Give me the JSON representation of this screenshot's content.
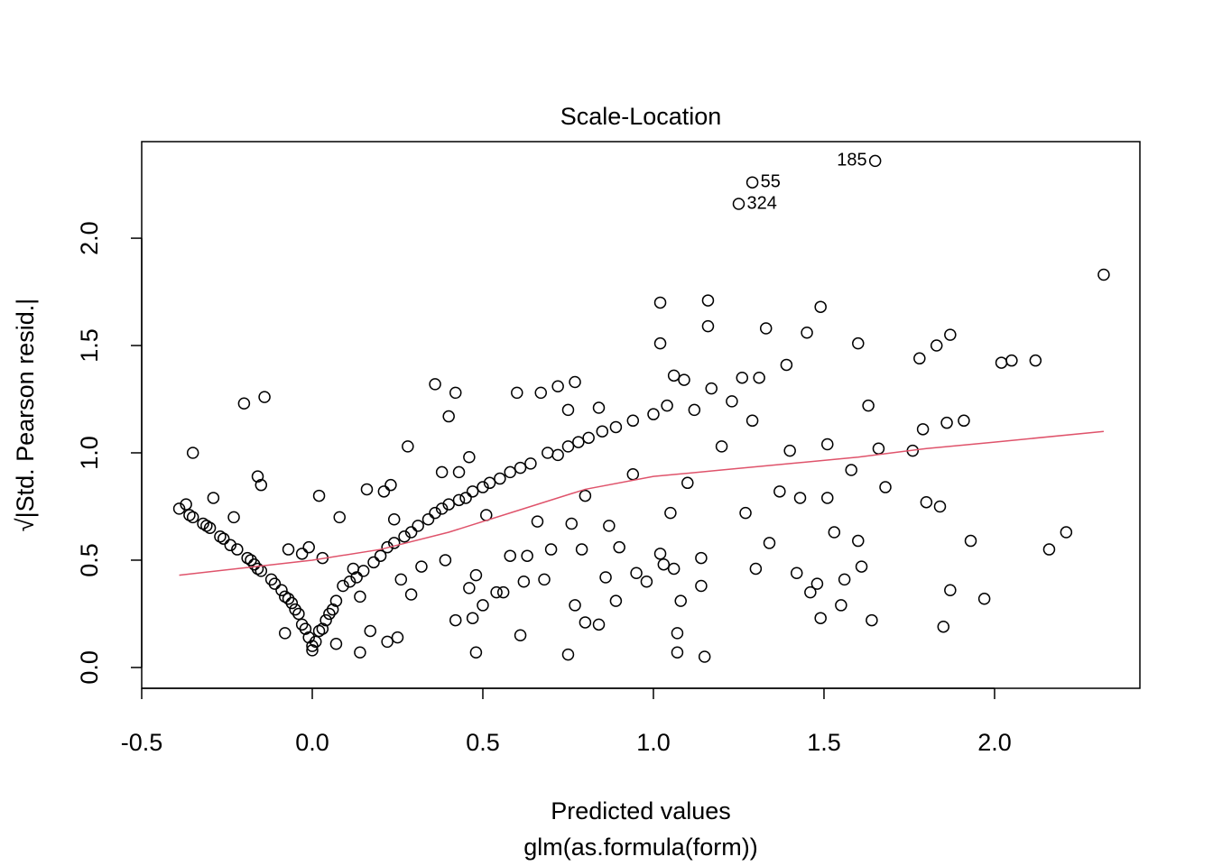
{
  "chart_data": {
    "type": "scatter",
    "title": "Scale-Location",
    "xlabel": "Predicted values",
    "subtitle": "glm(as.formula(form))",
    "ylabel": "√|Std. Pearson resid.|",
    "xlim": [
      -0.5,
      2.426
    ],
    "ylim": [
      -0.097,
      2.45
    ],
    "xticks": [
      -0.5,
      {
        "value": 0,
        "label": "0.0"
      },
      0.5,
      {
        "value": 1,
        "label": "1.0"
      },
      1.5,
      {
        "value": 2,
        "label": "2.0"
      }
    ],
    "yticks": [
      {
        "value": 0,
        "label": "0.0"
      },
      0.5,
      {
        "value": 1,
        "label": "1.0"
      },
      1.5,
      {
        "value": 2,
        "label": "2.0"
      }
    ],
    "points": {
      "color": "#000000",
      "x": [
        -0.39,
        -0.37,
        -0.36,
        -0.35,
        -0.32,
        -0.31,
        -0.3,
        -0.27,
        -0.26,
        -0.24,
        -0.22,
        -0.19,
        -0.18,
        -0.17,
        -0.16,
        -0.15,
        -0.12,
        -0.11,
        -0.09,
        -0.08,
        -0.07,
        -0.06,
        -0.05,
        -0.04,
        -0.03,
        -0.02,
        -0.01,
        0,
        0,
        0.01,
        0.02,
        0.03,
        0.04,
        0.05,
        0.06,
        0.07,
        0.09,
        0.11,
        0.13,
        0.15,
        0.18,
        0.2,
        0.22,
        0.24,
        0.27,
        0.29,
        0.31,
        0.34,
        0.36,
        0.38,
        0.4,
        0.43,
        0.45,
        0.47,
        0.5,
        0.52,
        0.55,
        0.58,
        0.61,
        0.64,
        0.69,
        0.72,
        0.75,
        0.78,
        0.81,
        0.85,
        0.89,
        0.94,
        -0.35,
        -0.2,
        -0.14,
        -0.16,
        -0.15,
        -0.23,
        -0.29,
        -0.08,
        -0.07,
        -0.03,
        -0.01,
        0.02,
        0.03,
        0.07,
        0.08,
        0.12,
        0.14,
        0.14,
        0.16,
        0.17,
        0.21,
        0.22,
        0.25,
        0.23,
        0.24,
        0.26,
        0.28,
        0.29,
        0.32,
        0.36,
        0.38,
        0.39,
        0.4,
        0.42,
        0.42,
        0.43,
        0.46,
        0.46,
        0.47,
        0.48,
        0.48,
        0.5,
        0.51,
        0.54,
        0.56,
        0.58,
        0.6,
        0.61,
        0.62,
        0.63,
        0.66,
        0.67,
        0.68,
        0.7,
        0.72,
        0.75,
        0.75,
        0.76,
        0.77,
        0.77,
        0.79,
        0.8,
        0.8,
        0.84,
        0.84,
        0.86,
        0.87,
        0.89,
        0.9,
        0.94,
        0.95,
        0.98,
        1.0,
        1.02,
        1.02,
        1.02,
        1.03,
        1.04,
        1.05,
        1.06,
        1.06,
        1.07,
        1.07,
        1.08,
        1.09,
        1.1,
        1.12,
        1.14,
        1.14,
        1.15,
        1.16,
        1.16,
        1.17,
        1.2,
        1.23,
        1.26,
        1.27,
        1.29,
        1.3,
        1.31,
        1.33,
        1.34,
        1.37,
        1.39,
        1.4,
        1.42,
        1.43,
        1.45,
        1.46,
        1.48,
        1.49,
        1.49,
        1.51,
        1.51,
        1.53,
        1.55,
        1.56,
        1.58,
        1.6,
        1.6,
        1.61,
        1.63,
        1.64,
        1.66,
        1.68,
        1.76,
        1.78,
        1.79,
        1.8,
        1.83,
        1.84,
        1.85,
        1.86,
        1.87,
        1.87,
        1.91,
        1.93,
        1.97,
        2.02,
        2.05,
        2.12,
        2.16,
        2.21,
        2.32
      ],
      "y": [
        0.74,
        0.76,
        0.71,
        0.7,
        0.67,
        0.66,
        0.65,
        0.61,
        0.6,
        0.57,
        0.55,
        0.51,
        0.5,
        0.48,
        0.46,
        0.45,
        0.41,
        0.39,
        0.36,
        0.33,
        0.32,
        0.3,
        0.27,
        0.25,
        0.2,
        0.18,
        0.14,
        0.08,
        0.1,
        0.12,
        0.17,
        0.18,
        0.22,
        0.25,
        0.27,
        0.31,
        0.38,
        0.4,
        0.42,
        0.45,
        0.49,
        0.52,
        0.56,
        0.58,
        0.61,
        0.63,
        0.66,
        0.69,
        0.72,
        0.74,
        0.76,
        0.78,
        0.79,
        0.82,
        0.84,
        0.86,
        0.88,
        0.91,
        0.93,
        0.95,
        1.0,
        0.99,
        1.03,
        1.05,
        1.07,
        1.1,
        1.12,
        1.15,
        1.0,
        1.23,
        1.26,
        0.89,
        0.85,
        0.7,
        0.79,
        0.16,
        0.55,
        0.53,
        0.56,
        0.8,
        0.51,
        0.11,
        0.7,
        0.46,
        0.07,
        0.33,
        0.83,
        0.17,
        0.82,
        0.12,
        0.14,
        0.85,
        0.69,
        0.41,
        1.03,
        0.34,
        0.47,
        1.32,
        0.91,
        0.5,
        1.17,
        1.28,
        0.22,
        0.91,
        0.98,
        0.37,
        0.23,
        0.07,
        0.43,
        0.29,
        0.71,
        0.35,
        0.35,
        0.52,
        1.28,
        0.15,
        0.4,
        0.52,
        0.68,
        1.28,
        0.41,
        0.55,
        1.31,
        0.06,
        1.2,
        0.67,
        0.29,
        1.33,
        0.55,
        0.21,
        0.8,
        0.2,
        1.21,
        0.42,
        0.66,
        0.31,
        0.56,
        0.9,
        0.44,
        0.4,
        1.18,
        1.7,
        1.51,
        0.53,
        0.48,
        1.22,
        0.72,
        1.36,
        0.46,
        0.16,
        0.07,
        0.31,
        1.34,
        0.86,
        1.2,
        0.51,
        0.38,
        0.05,
        1.71,
        1.59,
        1.3,
        1.03,
        1.24,
        1.35,
        0.72,
        1.15,
        0.46,
        1.35,
        1.58,
        0.58,
        0.82,
        1.41,
        1.01,
        0.44,
        0.79,
        1.56,
        0.35,
        0.39,
        1.68,
        0.23,
        1.04,
        0.79,
        0.63,
        0.29,
        0.41,
        0.92,
        1.51,
        0.59,
        0.47,
        1.22,
        0.22,
        1.02,
        0.84,
        1.01,
        1.44,
        1.11,
        0.77,
        1.5,
        0.75,
        0.19,
        1.14,
        1.55,
        0.36,
        1.15,
        0.59,
        0.32,
        1.42,
        1.43,
        1.43,
        0.55,
        0.63,
        1.83
      ]
    },
    "labeled_points": [
      {
        "label": "185",
        "x": 1.65,
        "y": 2.36,
        "side": "left"
      },
      {
        "label": "55",
        "x": 1.29,
        "y": 2.26,
        "side": "right"
      },
      {
        "label": "324",
        "x": 1.25,
        "y": 2.16,
        "side": "right"
      }
    ],
    "smooth": {
      "color": "#DF536B",
      "x": [
        -0.39,
        0,
        0.2,
        0.4,
        0.6,
        0.8,
        1.0,
        1.2,
        1.4,
        1.6,
        1.8,
        2.0,
        2.32
      ],
      "y": [
        0.43,
        0.5,
        0.55,
        0.63,
        0.73,
        0.83,
        0.89,
        0.92,
        0.95,
        0.98,
        1.02,
        1.05,
        1.1
      ]
    }
  }
}
